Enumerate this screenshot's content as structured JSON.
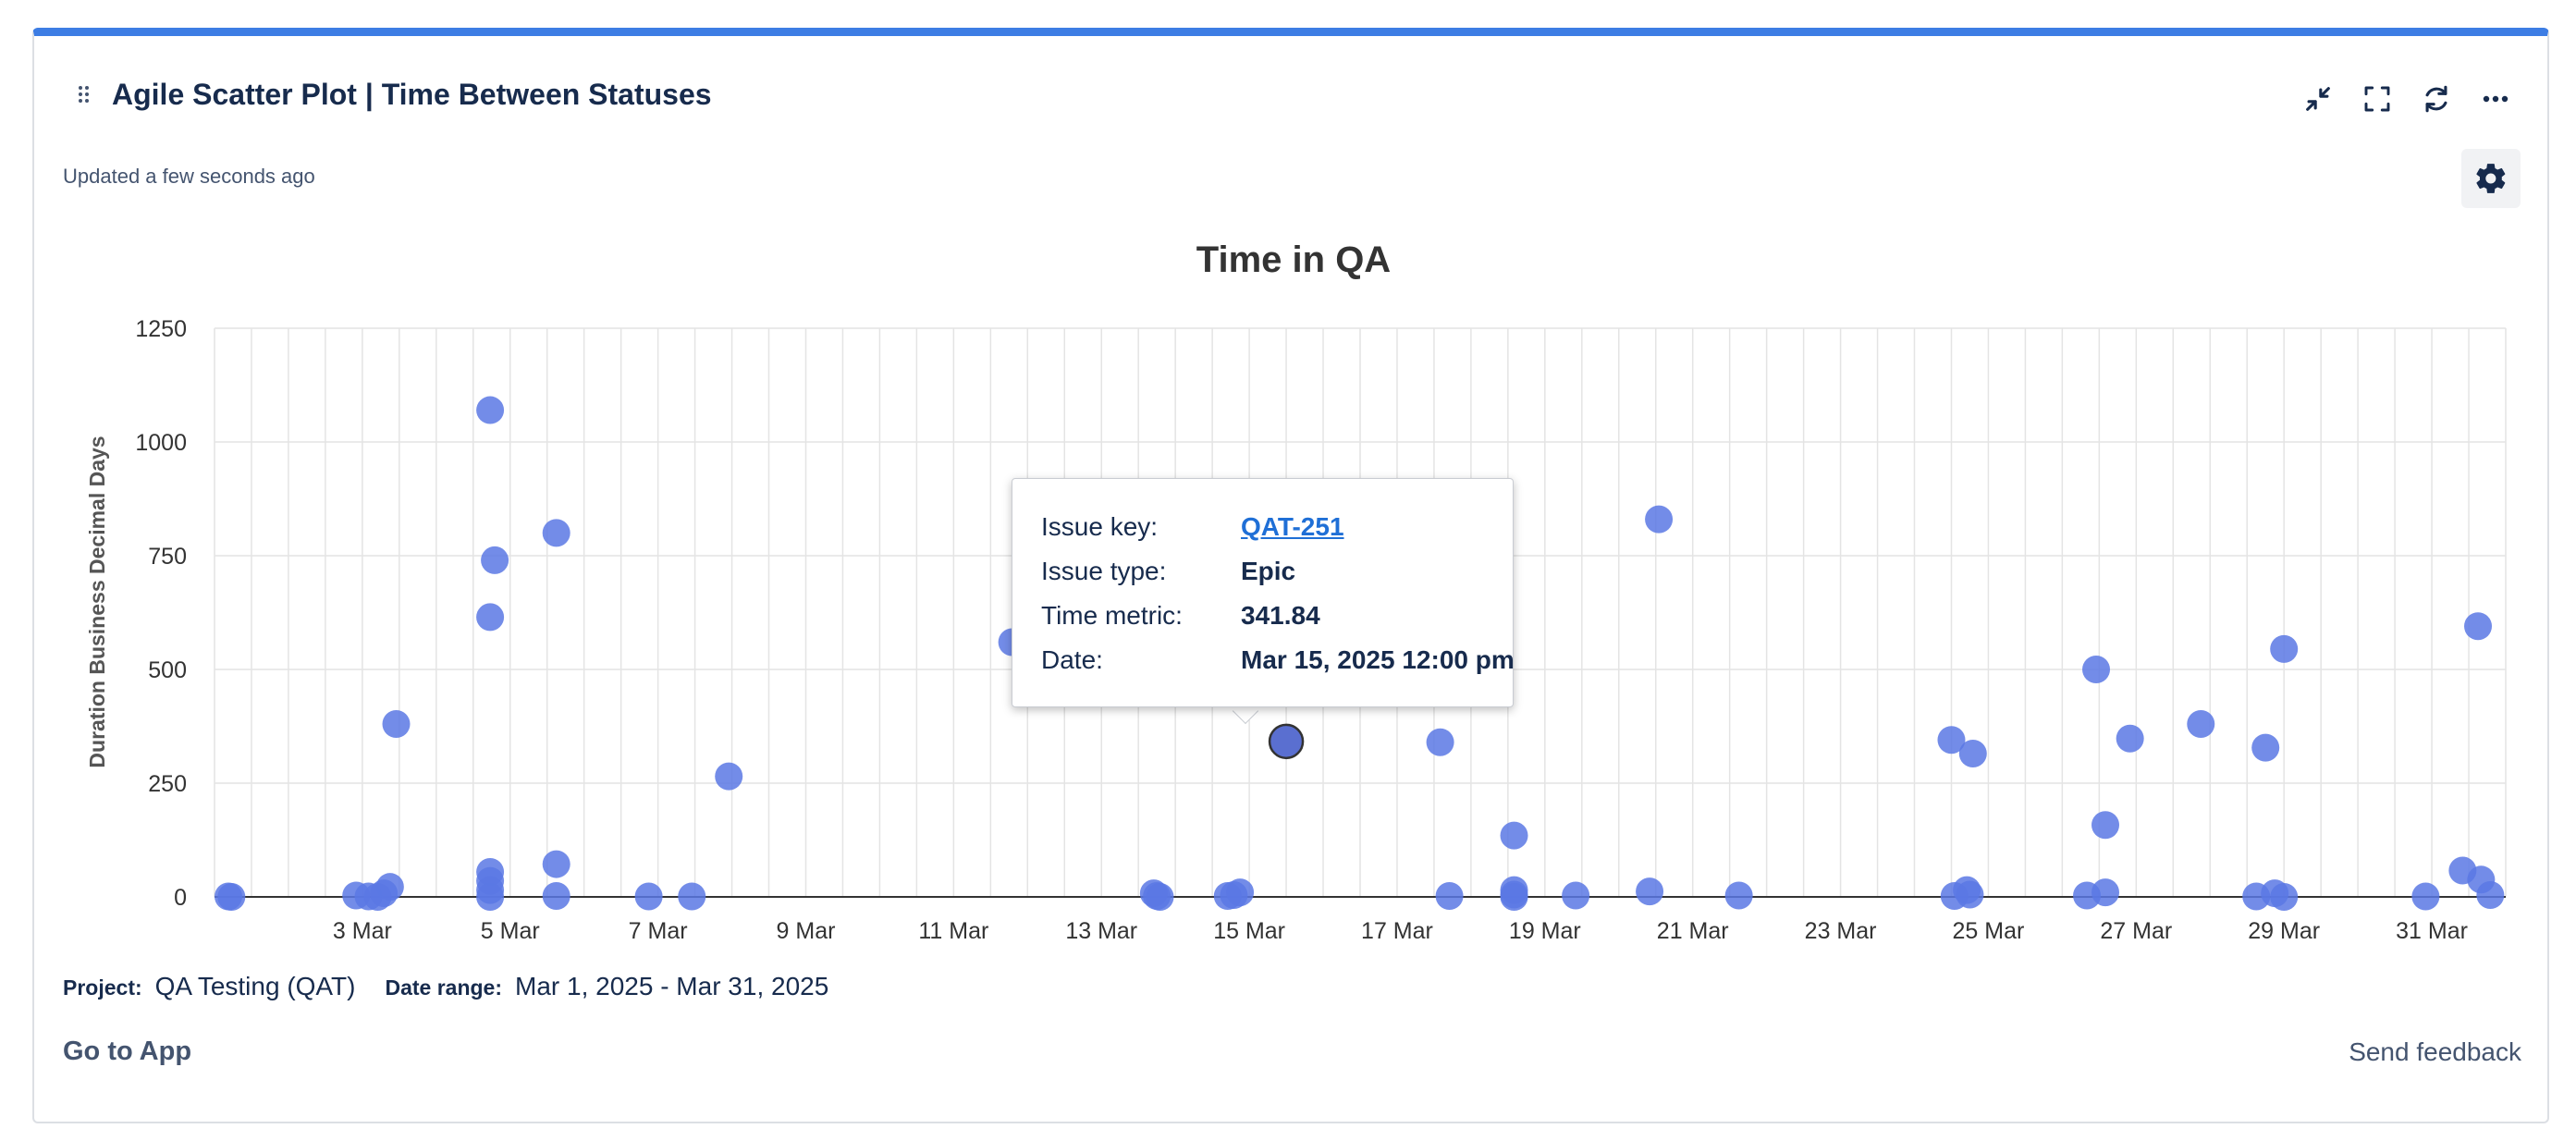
{
  "gadget": {
    "title": "Agile Scatter Plot | Time Between Statuses",
    "updated": "Updated a few seconds ago",
    "accent_color": "#3d7de4"
  },
  "toolbar": {
    "icons": [
      "minimize-icon",
      "fullscreen-icon",
      "refresh-icon",
      "more-icon",
      "gear-icon"
    ]
  },
  "tooltip": {
    "issue_key_label": "Issue key:",
    "issue_key": "QAT-251",
    "issue_type_label": "Issue type:",
    "issue_type": "Epic",
    "time_metric_label": "Time metric:",
    "time_metric": "341.84",
    "date_label": "Date:",
    "date": "Mar 15, 2025 12:00 pm"
  },
  "footer": {
    "project_label": "Project:",
    "project_value": "QA Testing (QAT)",
    "date_range_label": "Date range:",
    "date_range_value": "Mar 1, 2025 - Mar 31, 2025",
    "go_to_app": "Go to App",
    "send_feedback": "Send feedback"
  },
  "chart_data": {
    "type": "scatter",
    "title": "Time in QA",
    "ylabel": "Duration Business Decimal Days",
    "xlabel": "",
    "xlim": [
      "2025-03-01",
      "2025-04-01"
    ],
    "ylim": [
      0,
      1250
    ],
    "yticks": [
      0,
      250,
      500,
      750,
      1000,
      1250
    ],
    "xticks": [
      "3 Mar",
      "5 Mar",
      "7 Mar",
      "9 Mar",
      "11 Mar",
      "13 Mar",
      "15 Mar",
      "17 Mar",
      "19 Mar",
      "21 Mar",
      "23 Mar",
      "25 Mar",
      "27 Mar",
      "29 Mar",
      "31 Mar"
    ],
    "grid": true,
    "point_color": "#5a78e4",
    "highlight_color": "#5a6fd0",
    "highlighted_point": {
      "x": "2025-03-15 12:00",
      "y": 341.84
    },
    "points": [
      {
        "x": "2025-03-01 04:30",
        "y": 1
      },
      {
        "x": "2025-03-01 05:30",
        "y": 0
      },
      {
        "x": "2025-03-02 22:00",
        "y": 3
      },
      {
        "x": "2025-03-03 02:00",
        "y": 1
      },
      {
        "x": "2025-03-03 05:00",
        "y": 0
      },
      {
        "x": "2025-03-03 07:00",
        "y": 8
      },
      {
        "x": "2025-03-03 09:00",
        "y": 22
      },
      {
        "x": "2025-03-03 11:00",
        "y": 380
      },
      {
        "x": "2025-03-04 17:30",
        "y": 1070
      },
      {
        "x": "2025-03-04 19:00",
        "y": 740
      },
      {
        "x": "2025-03-04 17:30",
        "y": 615
      },
      {
        "x": "2025-03-04 17:30",
        "y": 55
      },
      {
        "x": "2025-03-04 17:30",
        "y": 35
      },
      {
        "x": "2025-03-04 17:30",
        "y": 15
      },
      {
        "x": "2025-03-04 17:30",
        "y": 0
      },
      {
        "x": "2025-03-05 15:00",
        "y": 800
      },
      {
        "x": "2025-03-05 15:00",
        "y": 72
      },
      {
        "x": "2025-03-05 15:00",
        "y": 2
      },
      {
        "x": "2025-03-06 21:00",
        "y": 1
      },
      {
        "x": "2025-03-07 11:00",
        "y": 1
      },
      {
        "x": "2025-03-07 23:00",
        "y": 265
      },
      {
        "x": "2025-03-11 19:00",
        "y": 560
      },
      {
        "x": "2025-03-13 17:00",
        "y": 8
      },
      {
        "x": "2025-03-13 18:00",
        "y": 2
      },
      {
        "x": "2025-03-13 19:00",
        "y": 0
      },
      {
        "x": "2025-03-14 17:00",
        "y": 2
      },
      {
        "x": "2025-03-14 19:00",
        "y": 4
      },
      {
        "x": "2025-03-14 21:00",
        "y": 10
      },
      {
        "x": "2025-03-15 12:00",
        "y": 341.84
      },
      {
        "x": "2025-03-17 14:00",
        "y": 340
      },
      {
        "x": "2025-03-17 17:00",
        "y": 2
      },
      {
        "x": "2025-03-18 14:00",
        "y": 135
      },
      {
        "x": "2025-03-18 14:00",
        "y": 15
      },
      {
        "x": "2025-03-18 14:00",
        "y": 5
      },
      {
        "x": "2025-03-18 14:00",
        "y": 0
      },
      {
        "x": "2025-03-19 10:00",
        "y": 3
      },
      {
        "x": "2025-03-20 10:00",
        "y": 12
      },
      {
        "x": "2025-03-20 13:00",
        "y": 830
      },
      {
        "x": "2025-03-21 15:00",
        "y": 3
      },
      {
        "x": "2025-03-24 12:00",
        "y": 345
      },
      {
        "x": "2025-03-24 13:00",
        "y": 2
      },
      {
        "x": "2025-03-24 17:00",
        "y": 15
      },
      {
        "x": "2025-03-24 18:00",
        "y": 5
      },
      {
        "x": "2025-03-24 19:00",
        "y": 315
      },
      {
        "x": "2025-03-26 08:00",
        "y": 3
      },
      {
        "x": "2025-03-26 11:00",
        "y": 500
      },
      {
        "x": "2025-03-26 14:00",
        "y": 158
      },
      {
        "x": "2025-03-26 14:00",
        "y": 10
      },
      {
        "x": "2025-03-26 22:00",
        "y": 348
      },
      {
        "x": "2025-03-27 21:00",
        "y": 380
      },
      {
        "x": "2025-03-28 15:00",
        "y": 1
      },
      {
        "x": "2025-03-28 18:00",
        "y": 328
      },
      {
        "x": "2025-03-28 21:00",
        "y": 8
      },
      {
        "x": "2025-03-29 00:00",
        "y": 545
      },
      {
        "x": "2025-03-29 00:00",
        "y": 0
      },
      {
        "x": "2025-03-30 22:00",
        "y": 1
      },
      {
        "x": "2025-03-31 10:00",
        "y": 58
      },
      {
        "x": "2025-03-31 15:00",
        "y": 595
      },
      {
        "x": "2025-03-31 16:00",
        "y": 38
      },
      {
        "x": "2025-03-31 19:00",
        "y": 4
      }
    ]
  }
}
